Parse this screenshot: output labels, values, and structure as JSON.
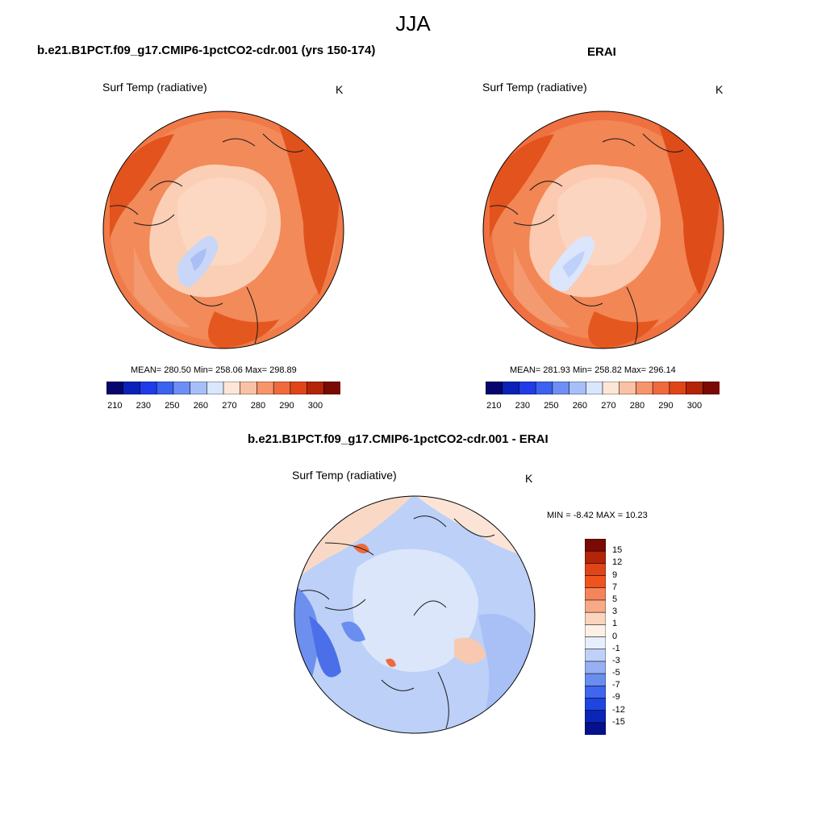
{
  "header": {
    "season": "JJA"
  },
  "panels": [
    {
      "title": "b.e21.B1PCT.f09_g17.CMIP6-1pctCO2-cdr.001 (yrs 150-174)",
      "variable": "Surf Temp (radiative)",
      "units": "K",
      "stats": "MEAN= 280.50  Min= 258.06  Max= 298.89"
    },
    {
      "title": "ERAI",
      "variable": "Surf Temp (radiative)",
      "units": "K",
      "stats": "MEAN= 281.93  Min= 258.82  Max= 296.14"
    },
    {
      "title": "b.e21.B1PCT.f09_g17.CMIP6-1pctCO2-cdr.001 - ERAI",
      "variable": "Surf Temp (radiative)",
      "units": "K",
      "stats": "MIN =  -8.42 MAX =  10.23"
    }
  ],
  "colorbar_abs": {
    "labels": [
      "210",
      "230",
      "250",
      "260",
      "270",
      "280",
      "290",
      "300"
    ],
    "colors": [
      "#06066e",
      "#0a22b8",
      "#1f3ce8",
      "#3b62f0",
      "#6d8ff5",
      "#a6bff8",
      "#d9e6fb",
      "#fde6d6",
      "#fbc1a4",
      "#f6946c",
      "#ef6a3c",
      "#e04518",
      "#b42408",
      "#7a0a04"
    ]
  },
  "colorbar_diff": {
    "labels": [
      "15",
      "12",
      "9",
      "7",
      "5",
      "3",
      "1",
      "0",
      "-1",
      "-3",
      "-5",
      "-7",
      "-9",
      "-12",
      "-15"
    ],
    "colors": [
      "#7a0a04",
      "#b42408",
      "#e04518",
      "#f0541e",
      "#f4855a",
      "#f8aa86",
      "#fcd3bd",
      "#fdf0e6",
      "#e8effc",
      "#bfd1f8",
      "#96b0f3",
      "#6a8ef0",
      "#3f66ec",
      "#1f45e0",
      "#0a26b8",
      "#06108c"
    ]
  }
}
